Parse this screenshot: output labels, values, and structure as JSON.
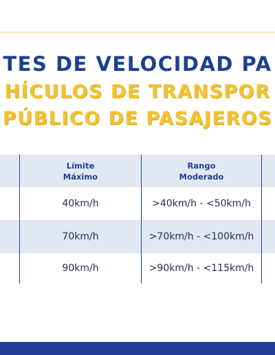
{
  "header": {
    "title": "TES DE VELOCIDAD PA",
    "subtitle": [
      "HÍCULOS DE TRANSPOR",
      "PÚBLICO DE PASAJEROS"
    ]
  },
  "table": {
    "columns": [
      [
        "Límite",
        "Máximo"
      ],
      [
        "Rango",
        "Moderado"
      ]
    ],
    "rows": [
      [
        "40km/h",
        ">40km/h - <50km/h"
      ],
      [
        "70km/h",
        ">70km/h - <100km/h"
      ],
      [
        "90km/h",
        ">90km/h - <115km/h"
      ]
    ]
  }
}
